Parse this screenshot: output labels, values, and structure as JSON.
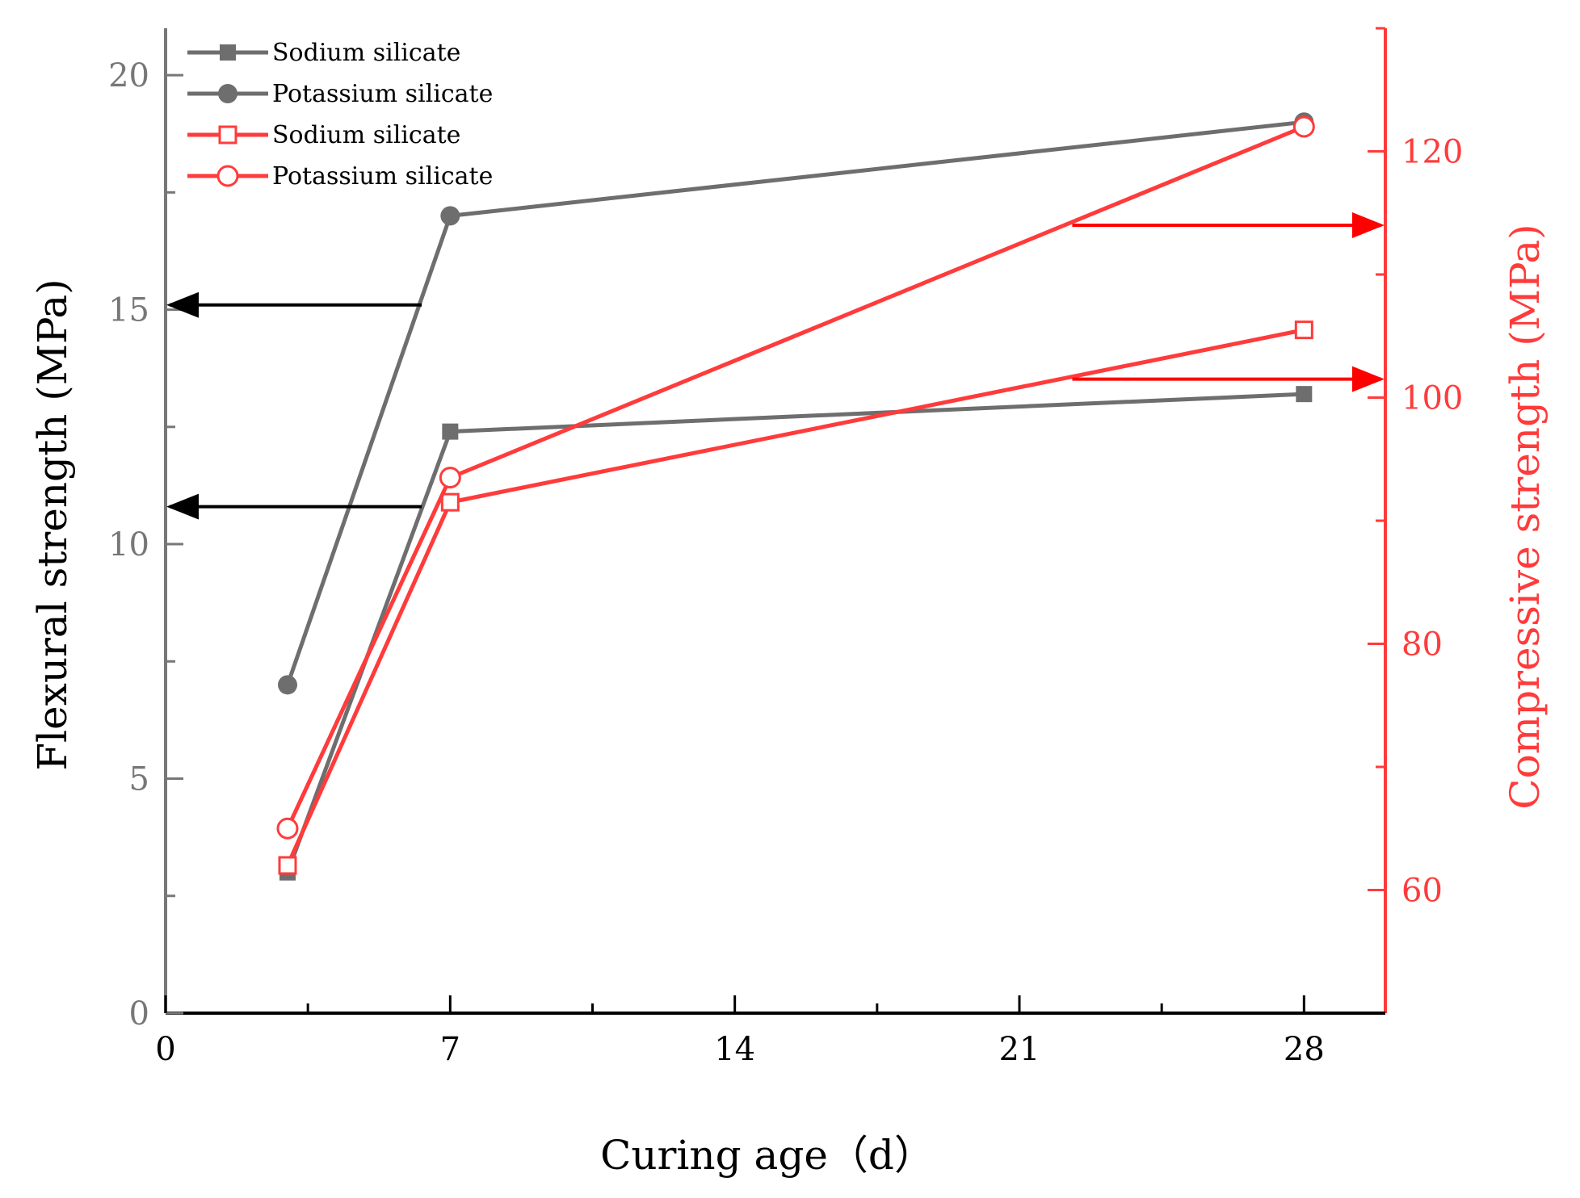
{
  "chart_data": {
    "type": "line",
    "title": "",
    "xlabel": "Curing age（d）",
    "ylabel_left": "Flexural strength (MPa)",
    "ylabel_right": "Compressive strength (MPa)",
    "x_ticks": [
      0,
      7,
      14,
      21,
      28
    ],
    "xlim": [
      0,
      30
    ],
    "ylim_left": [
      0,
      21
    ],
    "y_ticks_left": [
      0,
      5,
      10,
      15,
      20
    ],
    "ylim_right": [
      50,
      130
    ],
    "y_ticks_right": [
      60,
      80,
      100,
      120
    ],
    "grid": false,
    "legend_position": "top-left",
    "series": [
      {
        "name": "Sodium silicate",
        "axis": "left",
        "marker": "square-filled",
        "color": "#6e6e6e",
        "x": [
          3,
          7,
          28
        ],
        "values": [
          3.0,
          12.4,
          13.2
        ]
      },
      {
        "name": "Potassium silicate",
        "axis": "left",
        "marker": "circle-filled",
        "color": "#6e6e6e",
        "x": [
          3,
          7,
          28
        ],
        "values": [
          7.0,
          17.0,
          19.0
        ]
      },
      {
        "name": "Sodium silicate",
        "axis": "right",
        "marker": "square-open",
        "color": "#ff3b3b",
        "x": [
          3,
          7,
          28
        ],
        "values": [
          62.0,
          91.5,
          105.5
        ]
      },
      {
        "name": "Potassium silicate",
        "axis": "right",
        "marker": "circle-open",
        "color": "#ff3b3b",
        "x": [
          3,
          7,
          28
        ],
        "values": [
          65.0,
          93.5,
          122.0
        ]
      }
    ],
    "annotations": [
      {
        "type": "arrow",
        "direction": "left",
        "axis": "left",
        "x_from": 6.3,
        "x_to": 0.1,
        "y": 15.1,
        "color": "#000000"
      },
      {
        "type": "arrow",
        "direction": "left",
        "axis": "left",
        "x_from": 6.3,
        "x_to": 0.1,
        "y": 10.8,
        "color": "#000000"
      },
      {
        "type": "arrow",
        "direction": "right",
        "axis": "right",
        "x_from": 22.3,
        "x_to": 29.9,
        "y": 114.0,
        "color": "#ff0000"
      },
      {
        "type": "arrow",
        "direction": "right",
        "axis": "right",
        "x_from": 22.3,
        "x_to": 29.9,
        "y": 101.5,
        "color": "#ff0000"
      }
    ],
    "colors": {
      "left_axis": "#777777",
      "right_axis": "#ff3b3b",
      "grey_series": "#6e6e6e",
      "red_series": "#ff3b3b"
    }
  }
}
